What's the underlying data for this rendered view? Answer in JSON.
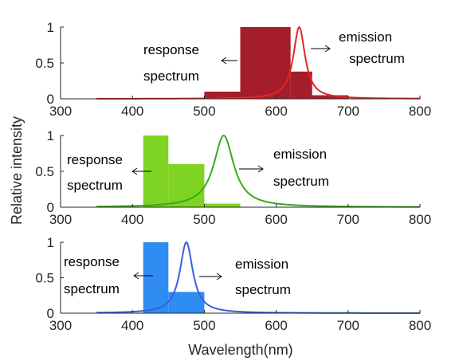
{
  "chart_data": [
    {
      "type": "bar",
      "xlim": [
        300,
        800
      ],
      "ylim": [
        0,
        1
      ],
      "xticks": [
        "300",
        "400",
        "500",
        "600",
        "700",
        "800"
      ],
      "yticks": [
        "0",
        "0.5",
        "1"
      ],
      "bar_color": "#a51d2b",
      "line_color": "#e8231e",
      "response_bins": [
        {
          "x0": 500,
          "x1": 550,
          "value": 0.1
        },
        {
          "x0": 550,
          "x1": 620,
          "value": 1.0
        },
        {
          "x0": 620,
          "x1": 650,
          "value": 0.38
        },
        {
          "x0": 650,
          "x1": 700,
          "value": 0.05
        }
      ],
      "emission_peak": 632,
      "emission_width": 10,
      "emission_range": [
        350,
        800
      ],
      "annotations": {
        "response": [
          "response",
          "spectrum"
        ],
        "emission": [
          "emission",
          "spectrum"
        ]
      }
    },
    {
      "type": "bar",
      "xlim": [
        300,
        800
      ],
      "ylim": [
        0,
        1
      ],
      "xticks": [
        "300",
        "400",
        "500",
        "600",
        "700",
        "800"
      ],
      "yticks": [
        "0",
        "0.5",
        "1"
      ],
      "bar_color": "#7fd322",
      "line_color": "#39a81e",
      "response_bins": [
        {
          "x0": 415,
          "x1": 450,
          "value": 1.0
        },
        {
          "x0": 450,
          "x1": 500,
          "value": 0.6
        },
        {
          "x0": 500,
          "x1": 550,
          "value": 0.05
        }
      ],
      "emission_peak": 527,
      "emission_width": 17,
      "emission_range": [
        350,
        800
      ],
      "annotations": {
        "response": [
          "response",
          "spectrum"
        ],
        "emission": [
          "emission",
          "spectrum"
        ]
      }
    },
    {
      "type": "bar",
      "xlim": [
        300,
        800
      ],
      "ylim": [
        0,
        1
      ],
      "xticks": [
        "300",
        "400",
        "500",
        "600",
        "700",
        "800"
      ],
      "yticks": [
        "0",
        "0.5",
        "1"
      ],
      "bar_color": "#2f8cf0",
      "line_color": "#3b5de0",
      "response_bins": [
        {
          "x0": 415,
          "x1": 450,
          "value": 1.0
        },
        {
          "x0": 450,
          "x1": 500,
          "value": 0.3
        }
      ],
      "emission_peak": 475,
      "emission_width": 11,
      "emission_range": [
        350,
        800
      ],
      "annotations": {
        "response": [
          "response",
          "spectrum"
        ],
        "emission": [
          "emission",
          "spectrum"
        ]
      }
    }
  ],
  "ylabel": "Relative intensity",
  "xlabel": "Wavelength(nm)"
}
